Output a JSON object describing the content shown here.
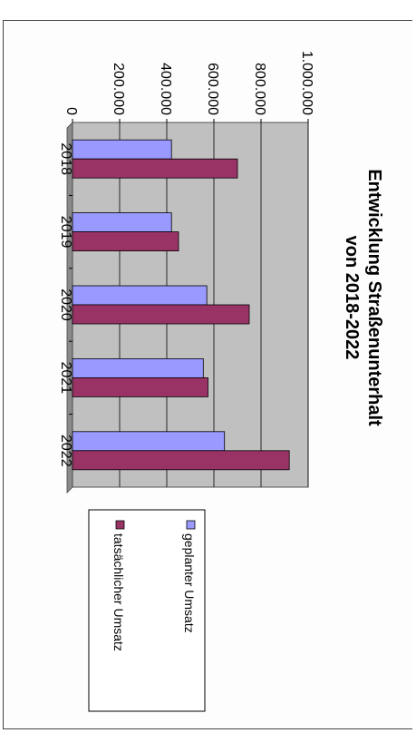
{
  "chart_data": {
    "type": "bar",
    "orientation": "vertical, figure rotated 90° clockwise on the page",
    "title": "Entwicklung Straßenunterhalt",
    "subtitle": "von 2018-2022",
    "categories": [
      "2018",
      "2019",
      "2020",
      "2021",
      "2022"
    ],
    "series": [
      {
        "name": "geplanter Umsatz",
        "values": [
          420000,
          420000,
          570000,
          555000,
          645000
        ],
        "color": "#9999ff"
      },
      {
        "name": "tatsächlicher Umsatz",
        "values": [
          700000,
          450000,
          750000,
          575000,
          920000
        ],
        "color": "#993366"
      }
    ],
    "ylim": [
      0,
      1000000
    ],
    "yticks": [
      "0",
      "200.000",
      "400.000",
      "600.000",
      "800.000",
      "1.000.000"
    ],
    "xlabel": "",
    "ylabel": "",
    "grid": true,
    "plot_background": "#c0c0c0",
    "legend_position": "right"
  }
}
